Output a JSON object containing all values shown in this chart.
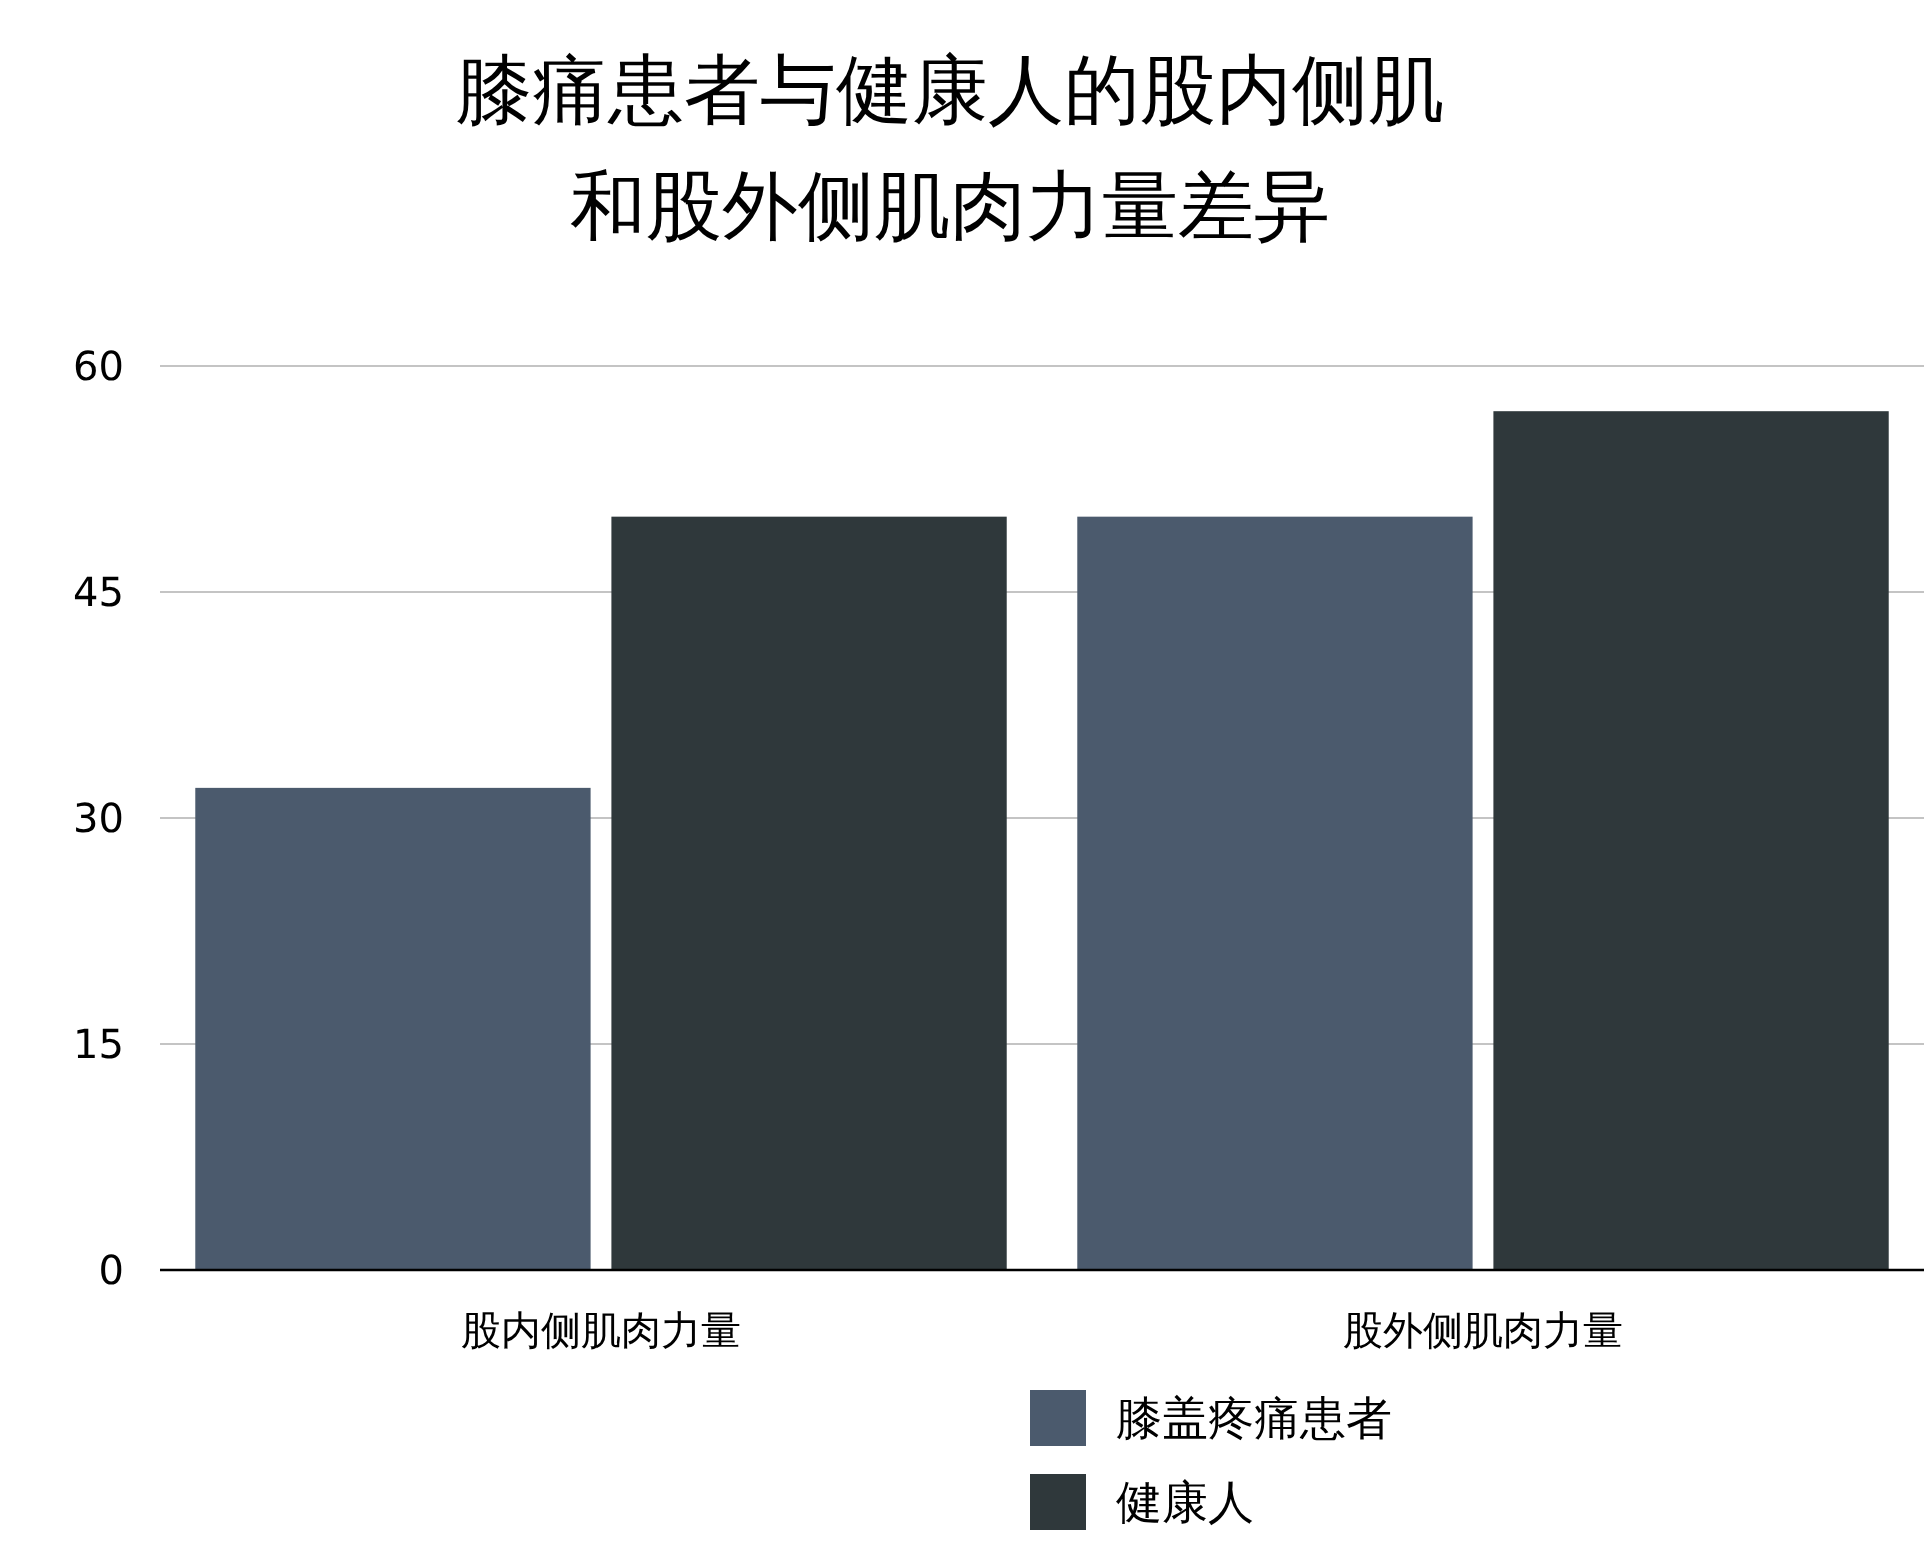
{
  "chart_data": {
    "type": "bar",
    "title": "膝痛患者与健康人的股内侧肌和股外侧肌肉力量差异",
    "categories": [
      "股内侧肌肉力量",
      "股外侧肌肉力量"
    ],
    "series": [
      {
        "name": "膝盖疼痛患者",
        "color": "#4b5a6d",
        "values": [
          32,
          50
        ]
      },
      {
        "name": "健康人",
        "color": "#2f383b",
        "values": [
          50,
          57
        ]
      }
    ],
    "ylim": [
      0,
      60
    ],
    "yticks": [
      0,
      15,
      30,
      45,
      60
    ],
    "grid": "y",
    "legend": "bottom"
  }
}
